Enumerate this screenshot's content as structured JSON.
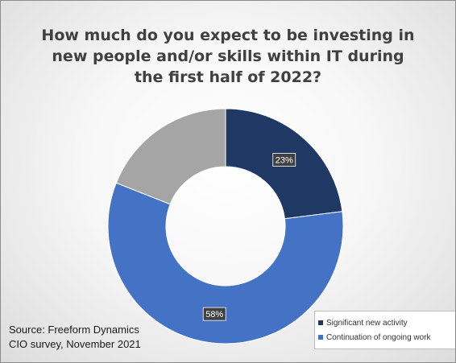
{
  "chart_data": {
    "type": "donut",
    "title": "How much do you expect to be investing in new people and/or skills within IT during the first half of 2022?",
    "title_lines": [
      "How much do you expect to be investing in",
      "new people and/or skills within IT during",
      "the first half of 2022?"
    ],
    "slices": [
      {
        "name": "Significant new activity",
        "value": 23,
        "label": "23%",
        "color": "#1f3864",
        "show_label": true,
        "in_legend": true
      },
      {
        "name": "Continuation of ongoing work",
        "value": 58,
        "label": "58%",
        "color": "#4472c4",
        "show_label": true,
        "in_legend": true
      },
      {
        "name": "",
        "value": 19,
        "label": "",
        "color": "#a5a5a5",
        "show_label": false,
        "in_legend": false
      }
    ],
    "legend_position": "bottom-right"
  },
  "source": {
    "line1": "Source: Freeform Dynamics",
    "line2": "CIO survey, November 2021"
  }
}
